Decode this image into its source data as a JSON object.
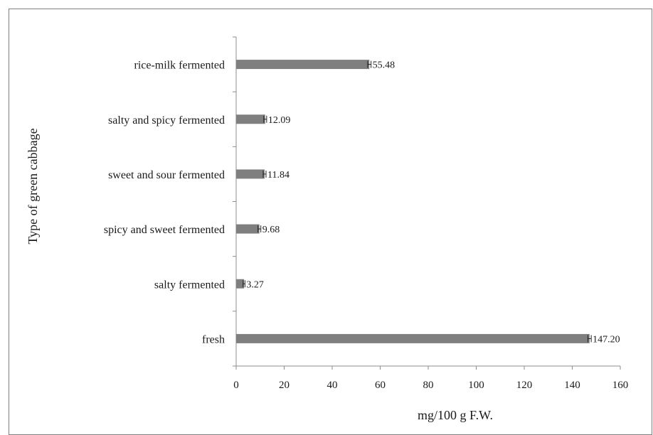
{
  "chart_data": {
    "type": "bar",
    "orientation": "horizontal",
    "title": "",
    "xlabel": "mg/100 g F.W.",
    "ylabel": "Type of green cabbage",
    "categories": [
      "rice-milk  fermented",
      "salty and spicy fermented",
      "sweet and sour fermented",
      "spicy and sweet fermented",
      "salty fermented",
      "fresh"
    ],
    "values": [
      55.48,
      12.09,
      11.84,
      9.68,
      3.27,
      147.2
    ],
    "data_labels": [
      "55.48",
      "12.09",
      "11.84",
      "9.68",
      "3.27",
      "147.20"
    ],
    "error": [
      0.7,
      0.6,
      0.6,
      0.6,
      0.4,
      0.7
    ],
    "xlim": [
      0,
      160
    ],
    "xticks": [
      0,
      20,
      40,
      60,
      80,
      100,
      120,
      140,
      160
    ],
    "grid": false,
    "legend": "none",
    "colors": {
      "bar": "#7f7f7f",
      "axis": "#8c8c8c",
      "text": "#1a1a1a"
    }
  }
}
